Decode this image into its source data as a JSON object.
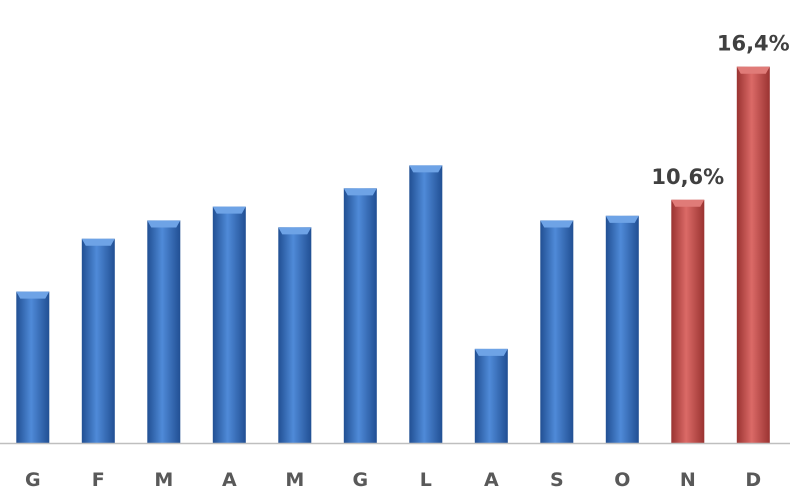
{
  "chart_data": {
    "type": "bar",
    "title": "",
    "xlabel": "",
    "ylabel": "",
    "categories": [
      "G",
      "F",
      "M",
      "A",
      "M",
      "G",
      "L",
      "A",
      "S",
      "O",
      "N",
      "D"
    ],
    "values": [
      6.6,
      8.9,
      9.7,
      10.3,
      9.4,
      11.1,
      12.1,
      4.1,
      9.7,
      9.9,
      10.6,
      16.4
    ],
    "ylim": [
      0,
      18
    ],
    "grid": false,
    "legend": "none",
    "highlight_indices": [
      10,
      11
    ],
    "data_labels": [
      {
        "index": 10,
        "text": "10,6%"
      },
      {
        "index": 11,
        "text": "16,4%"
      }
    ],
    "colors": {
      "bar": "#3c75c4",
      "bar_dark": "#214f93",
      "highlight": "#c9504e",
      "highlight_dark": "#9a3331",
      "axis": "#bfbfbf"
    }
  }
}
